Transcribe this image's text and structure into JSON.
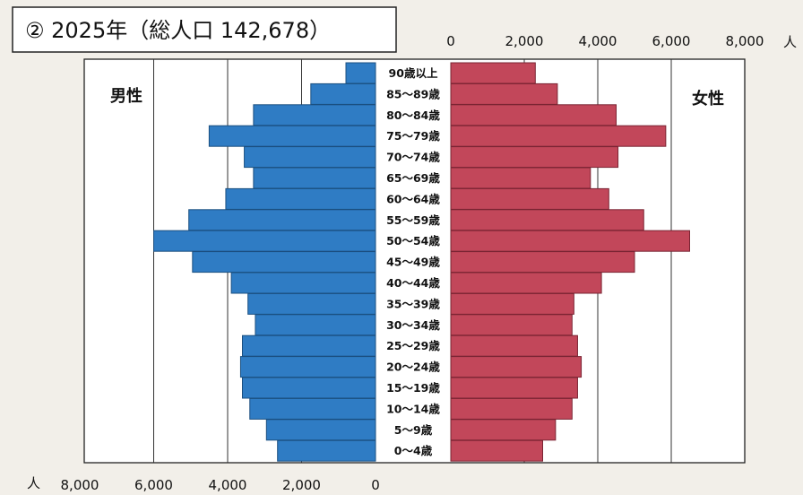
{
  "chart_data": {
    "type": "bar",
    "orientation": "horizontal",
    "subtype": "population-pyramid",
    "title": "② 2025年（総人口 142,678）",
    "categories": [
      "90歳以上",
      "85～89歳",
      "80～84歳",
      "75～79歳",
      "70～74歳",
      "65～69歳",
      "60～64歳",
      "55～59歳",
      "50～54歳",
      "45～49歳",
      "40～44歳",
      "35～39歳",
      "30～34歳",
      "25～29歳",
      "20～24歳",
      "15～19歳",
      "10～14歳",
      "5～9歳",
      "0～4歳"
    ],
    "series": [
      {
        "name": "男性",
        "color": "#2f7cc4",
        "values": [
          800,
          1750,
          3300,
          4500,
          3550,
          3300,
          4050,
          5050,
          6000,
          4950,
          3900,
          3450,
          3250,
          3600,
          3650,
          3600,
          3400,
          2950,
          2650
        ]
      },
      {
        "name": "女性",
        "color": "#c2475a",
        "values": [
          2300,
          2900,
          4500,
          5850,
          4550,
          3800,
          4300,
          5250,
          6500,
          5000,
          4100,
          3350,
          3300,
          3450,
          3550,
          3450,
          3300,
          2850,
          2500
        ]
      }
    ],
    "male_axis": {
      "ticks": [
        "8,000",
        "6,000",
        "4,000",
        "2,000",
        "0"
      ],
      "unit": "人",
      "range": [
        8000,
        0
      ]
    },
    "female_axis": {
      "ticks": [
        "0",
        "2,000",
        "4,000",
        "6,000",
        "8,000"
      ],
      "unit": "人",
      "range": [
        0,
        8000
      ]
    },
    "grid": true
  }
}
